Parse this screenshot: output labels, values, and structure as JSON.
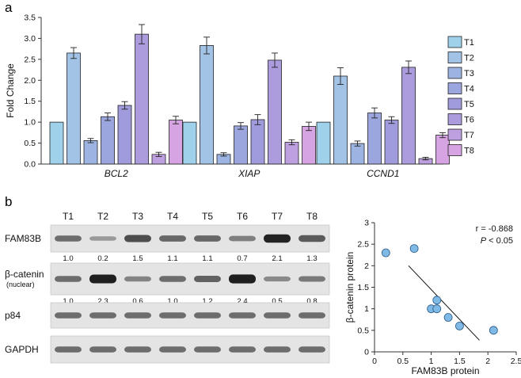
{
  "panel_a": {
    "label": "a"
  },
  "panel_b": {
    "label": "b"
  },
  "chart_data": [
    {
      "type": "bar",
      "panel": "a",
      "categories": [
        "BCL2",
        "XIAP",
        "CCND1"
      ],
      "series": [
        {
          "name": "T1",
          "color": "#9fd2ea",
          "values": [
            1.0,
            1.0,
            1.0
          ],
          "errors": [
            0,
            0,
            0
          ]
        },
        {
          "name": "T2",
          "color": "#a3c3e6",
          "values": [
            2.65,
            2.83,
            2.1
          ],
          "errors": [
            0.13,
            0.2,
            0.2
          ]
        },
        {
          "name": "T3",
          "color": "#9db4e2",
          "values": [
            0.56,
            0.23,
            0.49
          ],
          "errors": [
            0.05,
            0.04,
            0.06
          ]
        },
        {
          "name": "T4",
          "color": "#9ba6de",
          "values": [
            1.13,
            0.91,
            1.22
          ],
          "errors": [
            0.09,
            0.08,
            0.12
          ]
        },
        {
          "name": "T5",
          "color": "#a09bdd",
          "values": [
            1.4,
            1.06,
            1.05
          ],
          "errors": [
            0.09,
            0.12,
            0.08
          ]
        },
        {
          "name": "T6",
          "color": "#ac9cde",
          "values": [
            3.1,
            2.48,
            2.31
          ],
          "errors": [
            0.23,
            0.17,
            0.15
          ]
        },
        {
          "name": "T7",
          "color": "#be9fe0",
          "values": [
            0.23,
            0.52,
            0.13
          ],
          "errors": [
            0.05,
            0.06,
            0.03
          ]
        },
        {
          "name": "T8",
          "color": "#d6a4e2",
          "values": [
            1.05,
            0.9,
            0.69
          ],
          "errors": [
            0.09,
            0.1,
            0.06
          ]
        }
      ],
      "ylabel": "Fold Change",
      "ylim": [
        0,
        3.5
      ],
      "yticks": [
        "0.0",
        "0.5",
        "1.0",
        "1.5",
        "2.0",
        "2.5",
        "3.0",
        "3.5"
      ],
      "legend": "right",
      "grid": false
    },
    {
      "type": "table",
      "panel": "b",
      "columns": [
        "T1",
        "T2",
        "T3",
        "T4",
        "T5",
        "T6",
        "T7",
        "T8"
      ],
      "blots": [
        {
          "name": "FAM83B",
          "sub": "",
          "values": [
            "1.0",
            "0.2",
            "1.5",
            "1.1",
            "1.1",
            "0.7",
            "2.1",
            "1.3"
          ],
          "band_intensity": [
            1.0,
            0.2,
            1.5,
            1.1,
            1.1,
            0.7,
            2.1,
            1.3
          ]
        },
        {
          "name": "β-catenin",
          "sub": "(nuclear)",
          "values": [
            "1.0",
            "2.3",
            "0.6",
            "1.0",
            "1.2",
            "2.4",
            "0.5",
            "0.8"
          ],
          "band_intensity": [
            1.0,
            2.3,
            0.6,
            1.0,
            1.2,
            2.4,
            0.5,
            0.8
          ]
        },
        {
          "name": "p84",
          "sub": "",
          "values": [],
          "band_intensity": [
            1,
            1,
            1,
            1,
            1,
            1,
            1,
            1
          ]
        },
        {
          "name": "GAPDH",
          "sub": "",
          "values": [],
          "band_intensity": [
            1,
            1,
            1,
            1,
            1,
            1,
            1,
            1
          ]
        }
      ]
    },
    {
      "type": "scatter",
      "panel": "b",
      "points": [
        {
          "x": 1.0,
          "y": 1.0
        },
        {
          "x": 0.2,
          "y": 2.3
        },
        {
          "x": 1.5,
          "y": 0.6
        },
        {
          "x": 1.1,
          "y": 1.0
        },
        {
          "x": 1.1,
          "y": 1.2
        },
        {
          "x": 0.7,
          "y": 2.4
        },
        {
          "x": 2.1,
          "y": 0.5
        },
        {
          "x": 1.3,
          "y": 0.8
        }
      ],
      "fit_line": [
        {
          "x": 0.6,
          "y": 2.0
        },
        {
          "x": 1.85,
          "y": 0.27
        }
      ],
      "xlabel": "FAM83B protein",
      "ylabel": "β-catenin protein",
      "xlim": [
        0,
        2.5
      ],
      "ylim": [
        0,
        3.0
      ],
      "xticks": [
        "0",
        "0.5",
        "1",
        "1.5",
        "2",
        "2.5"
      ],
      "yticks": [
        "0",
        "0.5",
        "1",
        "1.5",
        "2",
        "2.5",
        "3"
      ],
      "annotation_r": "r = -0.868",
      "annotation_p_italic": "P",
      "annotation_p_rest": " < 0.05",
      "point_color": "#7fb9e6"
    }
  ]
}
